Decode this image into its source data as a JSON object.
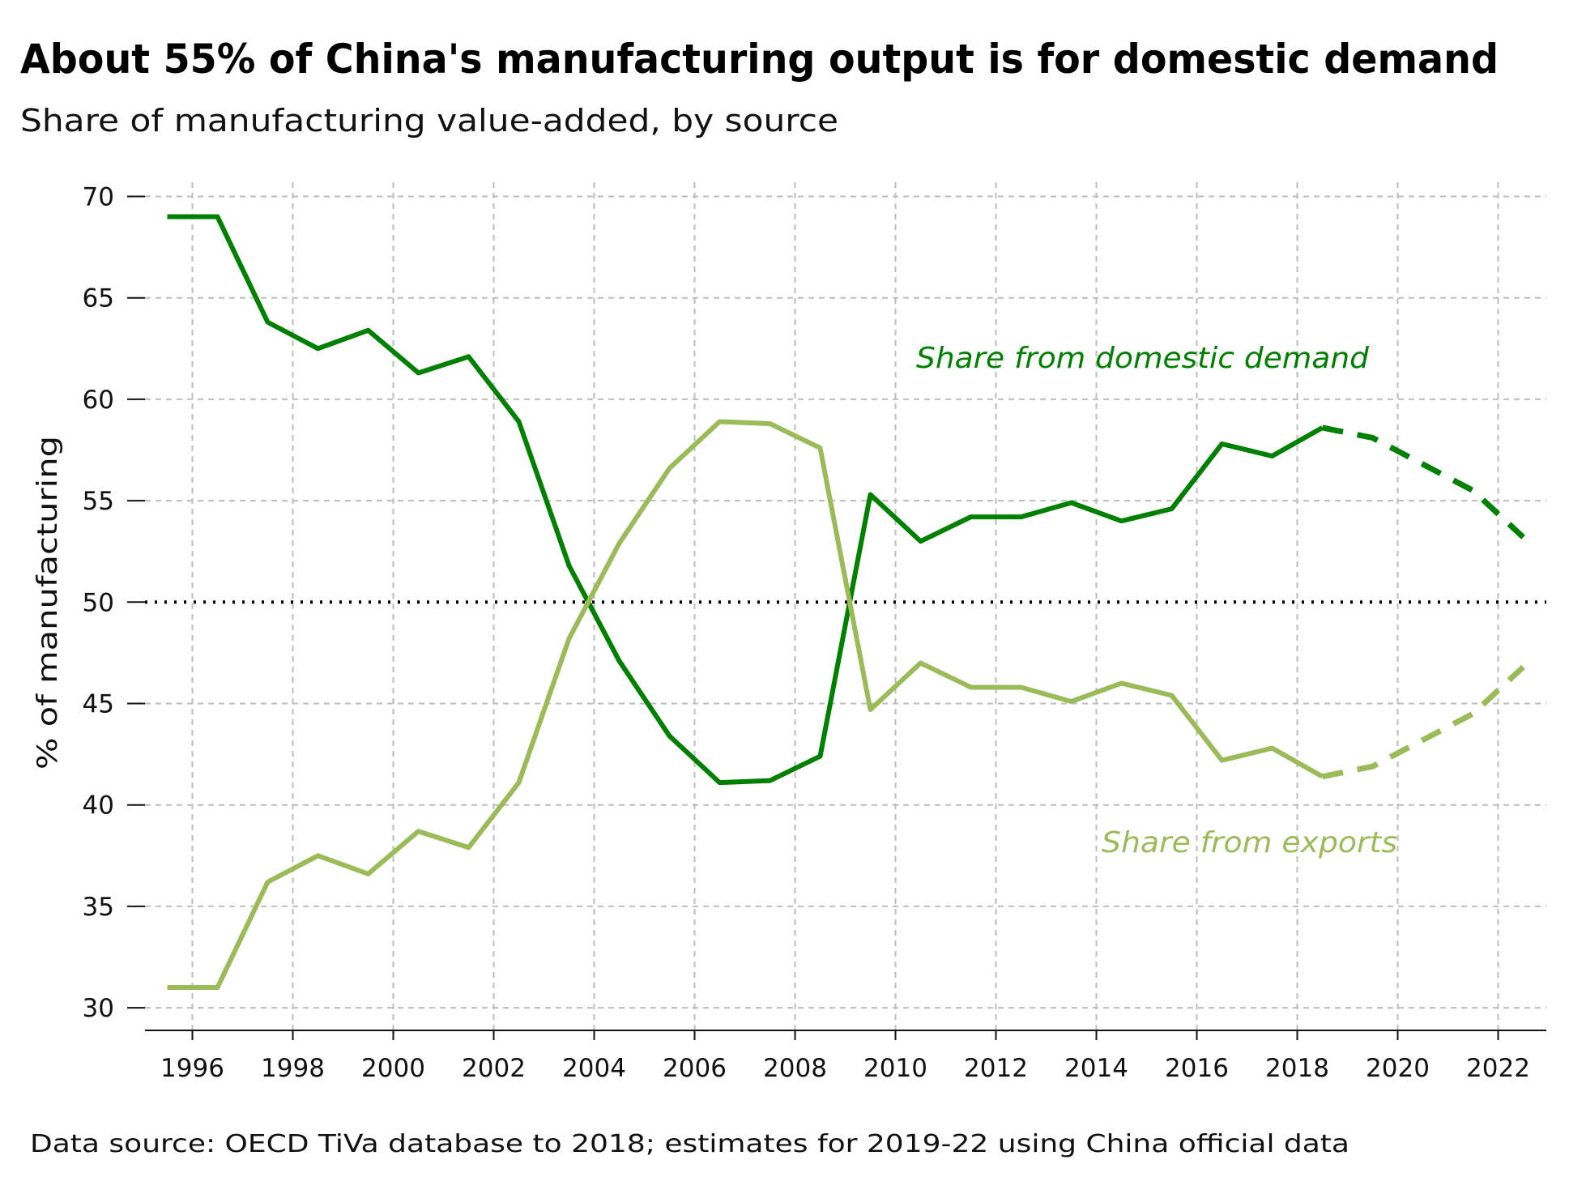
{
  "chart_data": {
    "type": "line",
    "title": "About 55% of China's manufacturing output is for domestic demand",
    "subtitle": "Share of manufacturing value-added, by source",
    "ylabel": "% of manufacturing",
    "xlabel": "",
    "source": "Data source: OECD TiVa database to 2018; estimates for 2019-22 using China official data",
    "xlim": [
      1995,
      2023
    ],
    "ylim": [
      29,
      71
    ],
    "xticks": [
      1996,
      1998,
      2000,
      2002,
      2004,
      2006,
      2008,
      2010,
      2012,
      2014,
      2016,
      2018,
      2020,
      2022
    ],
    "yticks": [
      30,
      35,
      40,
      45,
      50,
      55,
      60,
      65,
      70
    ],
    "grid": true,
    "reference_line": {
      "y": 50,
      "style": "dotted",
      "color": "#000000"
    },
    "x": [
      1995.5,
      1996.5,
      1997.5,
      1998.5,
      1999.5,
      2000.5,
      2001.5,
      2002.5,
      2003.5,
      2004.5,
      2005.5,
      2006.5,
      2007.5,
      2008.5,
      2009.5,
      2010.5,
      2011.5,
      2012.5,
      2013.5,
      2014.5,
      2015.5,
      2016.5,
      2017.5,
      2018.5
    ],
    "x_estimate": [
      2018.5,
      2019.5,
      2020.5,
      2021.5,
      2022.5
    ],
    "series": [
      {
        "name": "Share from domestic demand",
        "color": "#008000",
        "values": [
          69.0,
          69.0,
          63.8,
          62.5,
          63.4,
          61.3,
          62.1,
          58.9,
          51.8,
          47.1,
          43.4,
          41.1,
          41.2,
          42.4,
          55.3,
          53.0,
          54.2,
          54.2,
          54.9,
          54.0,
          54.6,
          57.8,
          57.2,
          58.6
        ],
        "estimate_values": [
          58.6,
          58.1,
          56.8,
          55.5,
          53.2
        ]
      },
      {
        "name": "Share from exports",
        "color": "#9bbb59",
        "values": [
          31.0,
          31.0,
          36.2,
          37.5,
          36.6,
          38.7,
          37.9,
          41.1,
          48.2,
          52.9,
          56.6,
          58.9,
          58.8,
          57.6,
          44.7,
          47.0,
          45.8,
          45.8,
          45.1,
          46.0,
          45.4,
          42.2,
          42.8,
          41.4
        ],
        "estimate_values": [
          41.4,
          41.9,
          43.2,
          44.5,
          46.8
        ]
      }
    ]
  }
}
